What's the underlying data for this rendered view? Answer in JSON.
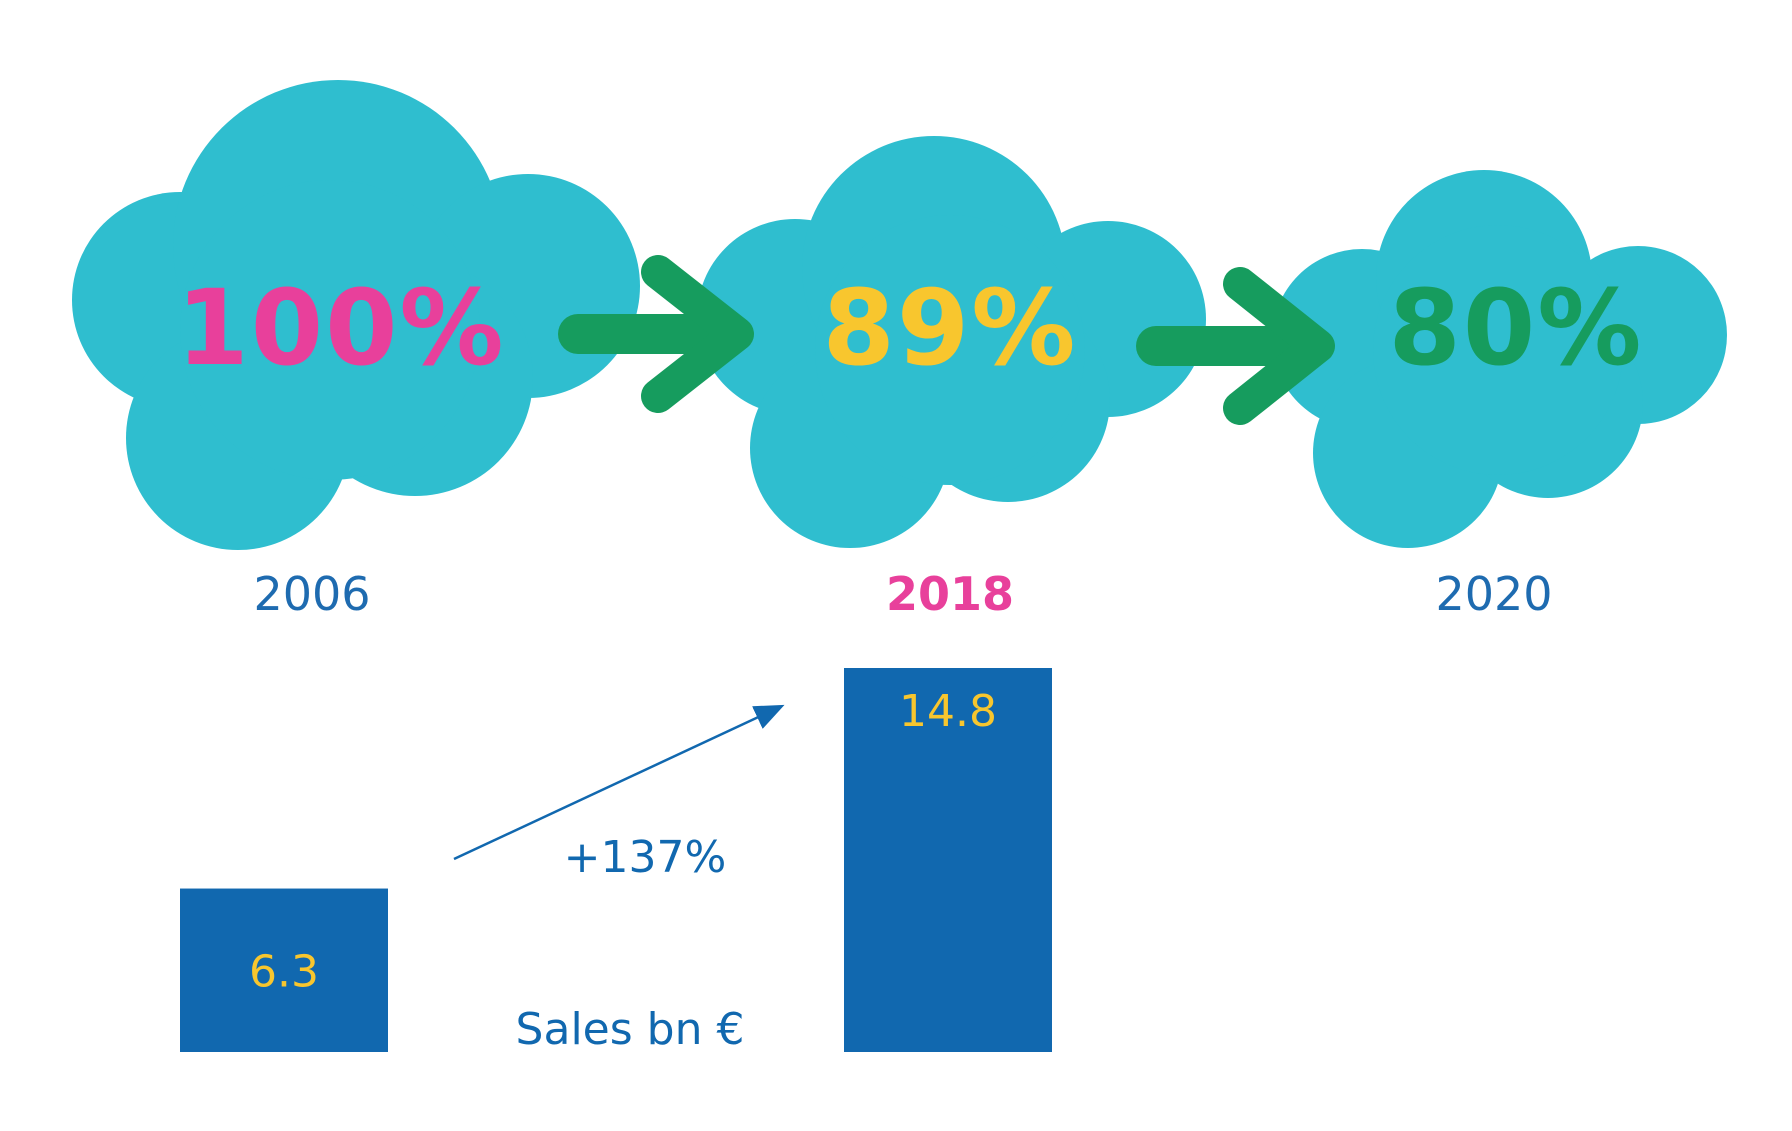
{
  "colors": {
    "cloud": "#2FBECF",
    "arrow": "#169C5E",
    "pink": "#E8409B",
    "yellow": "#F8C62E",
    "blue": "#1168AF",
    "year_blue": "#1E6BB0"
  },
  "icons": [
    "cloud-icon",
    "arrow-right-icon"
  ],
  "timeline": [
    {
      "pct": "100%",
      "year": "2006",
      "pct_color": "pink",
      "year_highlight": false
    },
    {
      "pct": "89%",
      "year": "2018",
      "pct_color": "yellow",
      "year_highlight": true
    },
    {
      "pct": "80%",
      "year": "2020",
      "pct_color": "green",
      "year_highlight": false
    }
  ],
  "chart_data": {
    "type": "bar",
    "categories": [
      "2006",
      "2018"
    ],
    "values": [
      6.3,
      14.8
    ],
    "value_labels": [
      "6.3",
      "14.8"
    ],
    "growth_label": "+137%",
    "caption": "Sales bn €",
    "title": "",
    "xlabel": "",
    "ylabel": "",
    "ylim": [
      0,
      14.8
    ],
    "grid": false,
    "legend": "none"
  }
}
